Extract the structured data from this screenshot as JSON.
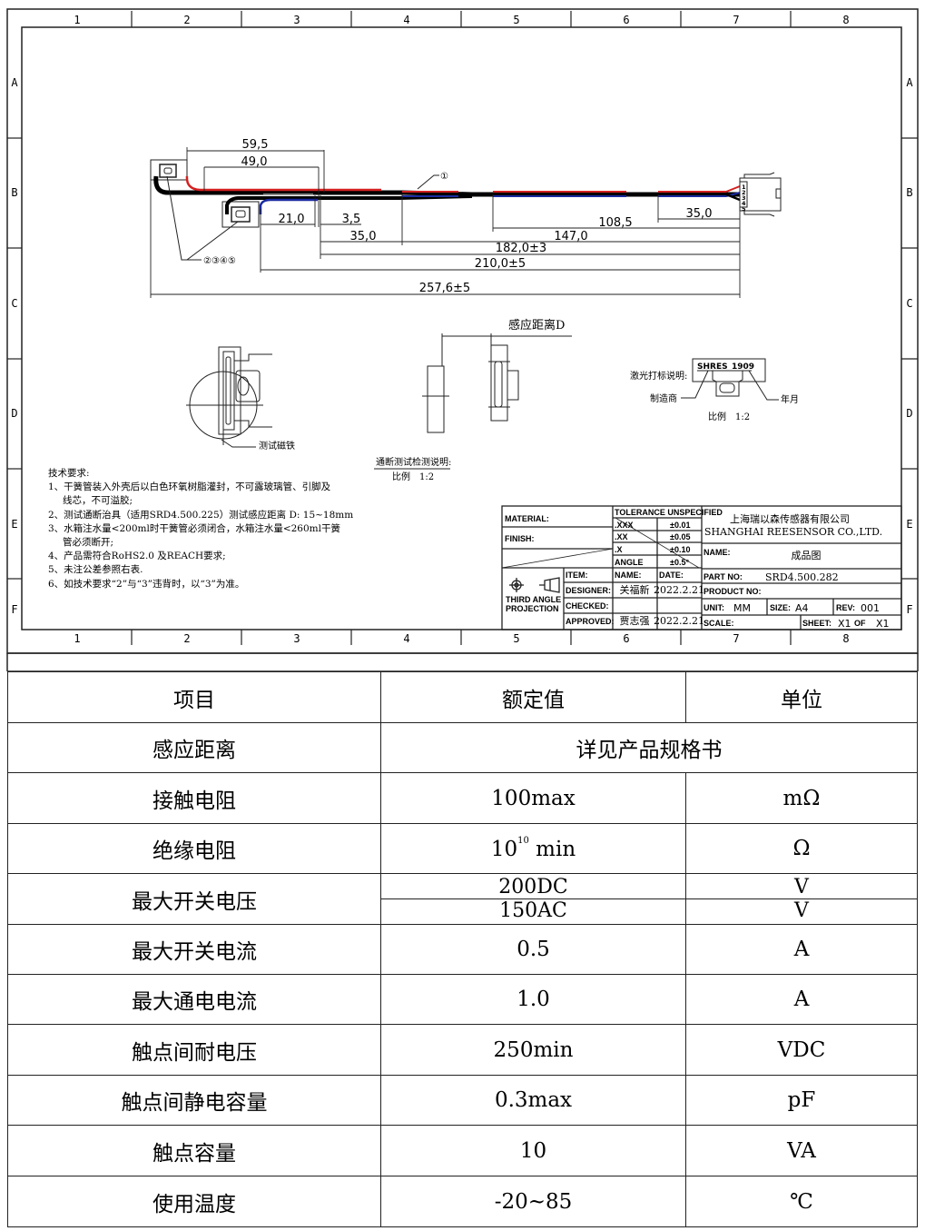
{
  "drawing": {
    "grid_columns": [
      "1",
      "2",
      "3",
      "4",
      "5",
      "6",
      "7",
      "8"
    ],
    "grid_rows": [
      "A",
      "B",
      "C",
      "D",
      "E",
      "F"
    ],
    "dimensions": {
      "d59_5": "59,5",
      "d49_0": "49,0",
      "d21_0": "21,0",
      "d3_5": "3,5",
      "d35_0_left": "35,0",
      "d108_5": "108,5",
      "d35_0_right": "35,0",
      "d147_0": "147,0",
      "d182": "182,0±3",
      "d210": "210,0±5",
      "d257": "257,6±5"
    },
    "callouts": {
      "part1": "①",
      "parts2345": "②③④⑤"
    },
    "connector_pins": [
      "1",
      "2",
      "3",
      "4",
      "5"
    ],
    "wire_colors": {
      "red": "#d42020",
      "blue": "#1a2aa0",
      "black": "#000000"
    },
    "views": {
      "test_magnet": "测试磁铁",
      "sensing_distance": "感应距离D",
      "continuity_note": "通断测试检测说明:",
      "continuity_scale": "比例　1:2",
      "laser_note": "激光打标说明:",
      "laser_text_maker": "SHRES",
      "laser_text_date": "1909",
      "manufacturer": "制造商",
      "year_month": "年月",
      "laser_scale": "比例　1:2"
    },
    "tech_requirements": {
      "title": "技术要求:",
      "items": [
        "1、干簧管装入外壳后以白色环氧树脂灌封，不可露玻璃管、引脚及",
        "线芯，不可溢胶;",
        "2、测试通断治具（适用SRD4.500.225）测试感应距离 D: 15~18mm",
        "3、水箱注水量<200ml时干簧管必须闭合，水箱注水量<260ml干簧",
        "管必须断开;",
        "4、产品需符合RoHS2.0 及REACH要求;",
        "5、未注公差参照右表.",
        "6、如技术要求“2”与“3”违背时，以“3”为准。"
      ]
    },
    "title_block": {
      "material_label": "MATERIAL:",
      "finish_label": "FINISH:",
      "tolerance_header": "TOLERANCE  UNSPECIFIED",
      "tolerances": [
        {
          "label": ".XXX",
          "value": "±0.01"
        },
        {
          "label": ".XX",
          "value": "±0.05"
        },
        {
          "label": ".X",
          "value": "±0.10"
        },
        {
          "label": "ANGLE",
          "value": "±0.5°"
        }
      ],
      "projection": "THIRD ANGLE PROJECTION",
      "projection_line1": "THIRD  ANGLE",
      "projection_line2": "PROJECTION",
      "item_label": "ITEM:",
      "name_col_label": "NAME:",
      "date_col_label": "DATE:",
      "designer_label": "DESIGNER:",
      "designer_name": "关福新",
      "designer_date": "2022.2.21",
      "checked_label": "CHECKED:",
      "approved_label": "APPROVED:",
      "approved_name": "贾志强",
      "approved_date": "2022.2.21",
      "company_cn": "上海瑞以森传感器有限公司",
      "company_en": "SHANGHAI REESENSOR CO.,LTD.",
      "name_label": "NAME:",
      "name_value": "成品图",
      "part_no_label": "PART NO:",
      "part_no_value": "SRD4.500.282",
      "product_no_label": "PRODUCT NO:",
      "unit_label": "UNIT:",
      "unit_value": "MM",
      "size_label": "SIZE:",
      "size_value": "A4",
      "rev_label": "REV:",
      "rev_value": "001",
      "scale_label": "SCALE:",
      "sheet_label": "SHEET:",
      "sheet_value": "X1",
      "sheet_of": "OF",
      "sheet_total": "X1"
    }
  },
  "spec_table": {
    "headers": [
      "项目",
      "额定值",
      "单位"
    ],
    "rows": [
      {
        "item": "感应距离",
        "value": "详见产品规格书"
      },
      {
        "item": "接触电阻",
        "value": "100max",
        "unit": "mΩ"
      },
      {
        "item": "绝缘电阻",
        "value_base": "10",
        "value_exp": "10",
        "value_suffix": " min",
        "unit": "Ω"
      },
      {
        "item": "最大开关电压",
        "values": [
          "200DC",
          "150AC"
        ],
        "units": [
          "V",
          "V"
        ]
      },
      {
        "item": "最大开关电流",
        "value": "0.5",
        "unit": "A"
      },
      {
        "item": "最大通电电流",
        "value": "1.0",
        "unit": "A"
      },
      {
        "item": "触点间耐电压",
        "value": "250min",
        "unit": "VDC"
      },
      {
        "item": "触点间静电容量",
        "value": "0.3max",
        "unit": "pF"
      },
      {
        "item": "触点容量",
        "value": "10",
        "unit": "VA"
      },
      {
        "item": "使用温度",
        "value": "-20~85",
        "unit": "℃"
      }
    ]
  }
}
